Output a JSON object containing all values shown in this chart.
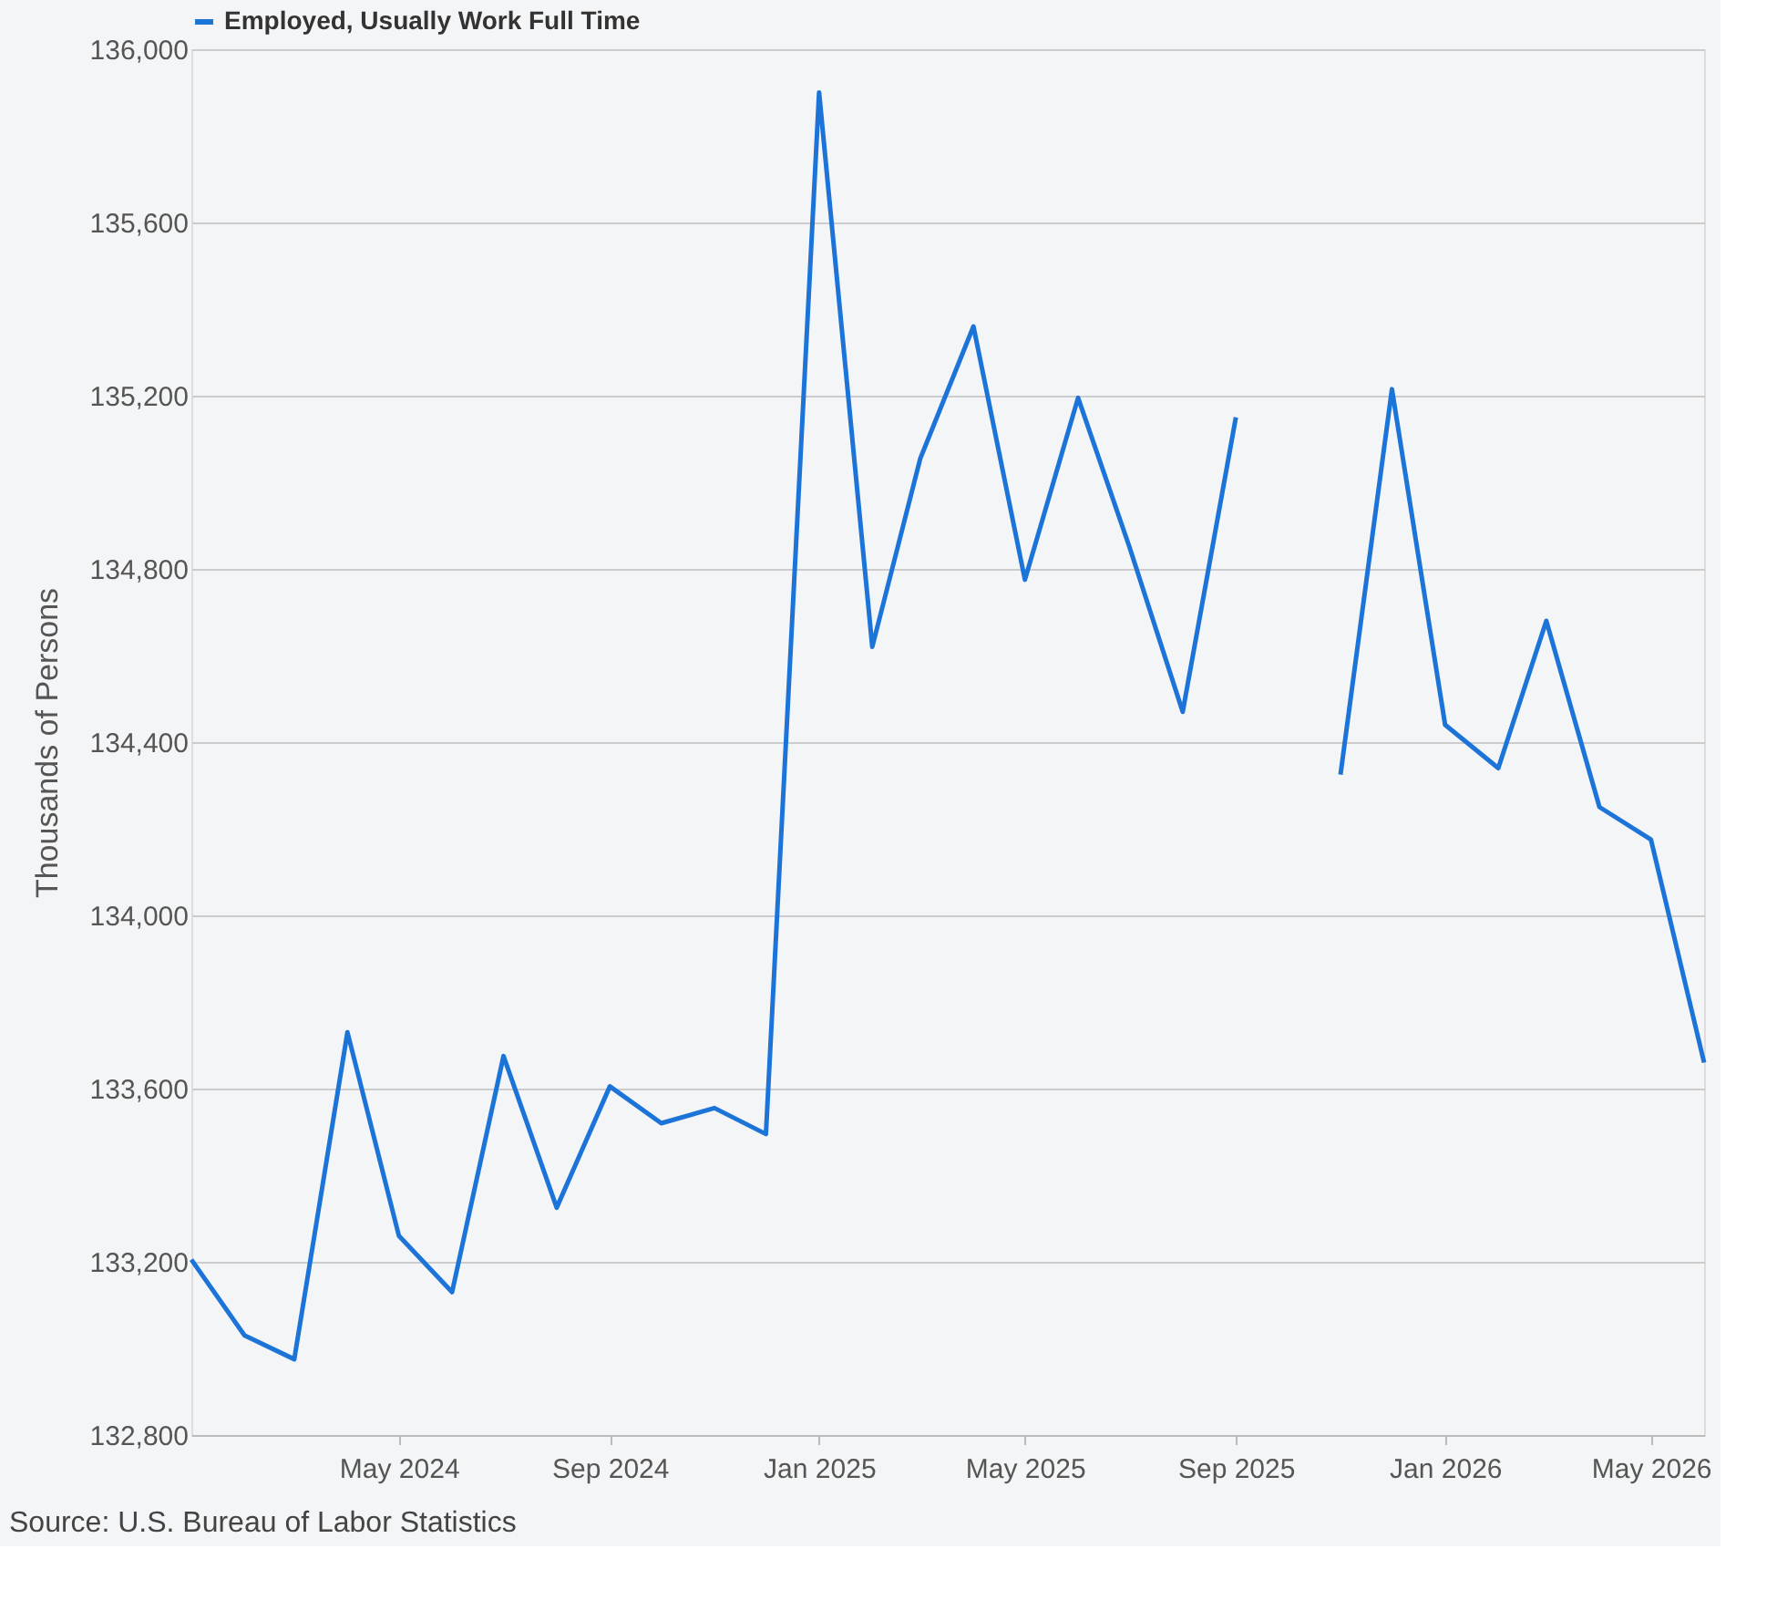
{
  "chart_data": {
    "type": "line",
    "ylabel": "Thousands of Persons",
    "x": [
      "2024-01",
      "2024-02",
      "2024-03",
      "2024-04",
      "2024-05",
      "2024-06",
      "2024-07",
      "2024-08",
      "2024-09",
      "2024-10",
      "2024-11",
      "2024-12",
      "2025-01",
      "2025-02",
      "2025-03",
      "2025-04",
      "2025-05",
      "2025-06",
      "2025-07",
      "2025-08",
      "2025-09",
      "2025-10",
      "2025-11",
      "2025-12",
      "2026-01",
      "2026-02",
      "2026-03",
      "2026-04",
      "2026-05",
      "2026-06"
    ],
    "series": [
      {
        "name": "Employed, Usually Work Full Time",
        "color": "#1c74d8",
        "values": [
          133205,
          133030,
          132975,
          133730,
          133260,
          133130,
          133675,
          133325,
          133605,
          133520,
          133555,
          133495,
          135900,
          134620,
          135055,
          135360,
          134775,
          135195,
          134850,
          134470,
          135150,
          null,
          134325,
          135215,
          134440,
          134340,
          134680,
          134250,
          134175,
          133660
        ]
      }
    ],
    "xlim": [
      "2024-01",
      "2026-06"
    ],
    "xticks": [
      {
        "value": "2024-05",
        "label": "May 2024"
      },
      {
        "value": "2024-09",
        "label": "Sep 2024"
      },
      {
        "value": "2025-01",
        "label": "Jan 2025"
      },
      {
        "value": "2025-05",
        "label": "May 2025"
      },
      {
        "value": "2025-09",
        "label": "Sep 2025"
      },
      {
        "value": "2026-01",
        "label": "Jan 2026"
      },
      {
        "value": "2026-05",
        "label": "May 2026"
      }
    ],
    "ylim": [
      132800,
      136000
    ],
    "yticks": [
      {
        "value": 132800,
        "label": "132,800"
      },
      {
        "value": 133200,
        "label": "133,200"
      },
      {
        "value": 133600,
        "label": "133,600"
      },
      {
        "value": 134000,
        "label": "134,000"
      },
      {
        "value": 134400,
        "label": "134,400"
      },
      {
        "value": 134800,
        "label": "134,800"
      },
      {
        "value": 135200,
        "label": "135,200"
      },
      {
        "value": 135600,
        "label": "135,600"
      },
      {
        "value": 136000,
        "label": "136,000"
      }
    ],
    "grid": "y",
    "legend": "top left",
    "marker": "none",
    "line_style": "solid",
    "annotations": [
      "Source: U.S. Bureau of Labor Statistics"
    ]
  }
}
